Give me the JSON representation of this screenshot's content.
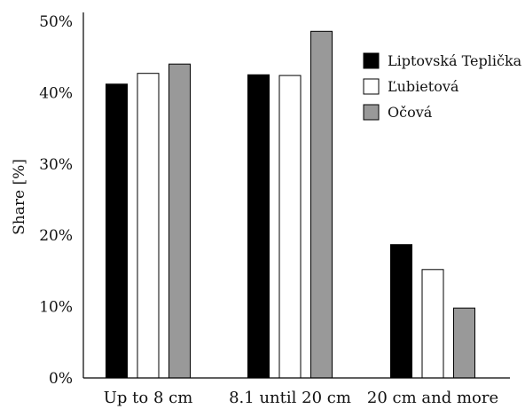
{
  "chart_data": {
    "type": "bar",
    "title": "",
    "xlabel": "",
    "ylabel": "Share [%]",
    "ylim": [
      0,
      50
    ],
    "yticks": [
      0,
      10,
      20,
      30,
      40,
      50
    ],
    "ytick_labels": [
      "0%",
      "10%",
      "20%",
      "30%",
      "40%",
      "50%"
    ],
    "categories": [
      "Up to 8 cm",
      "8.1 until 20 cm",
      "20 cm and more"
    ],
    "series": [
      {
        "name": "Liptovská Teplička",
        "values": [
          41.2,
          42.5,
          18.7
        ],
        "color": "#000000"
      },
      {
        "name": "Ľubietová",
        "values": [
          42.7,
          42.4,
          15.2
        ],
        "color": "#ffffff"
      },
      {
        "name": "Očová",
        "values": [
          44.0,
          48.6,
          9.8
        ],
        "color": "#999999"
      }
    ],
    "grid": false,
    "legend_position": "top-right"
  }
}
